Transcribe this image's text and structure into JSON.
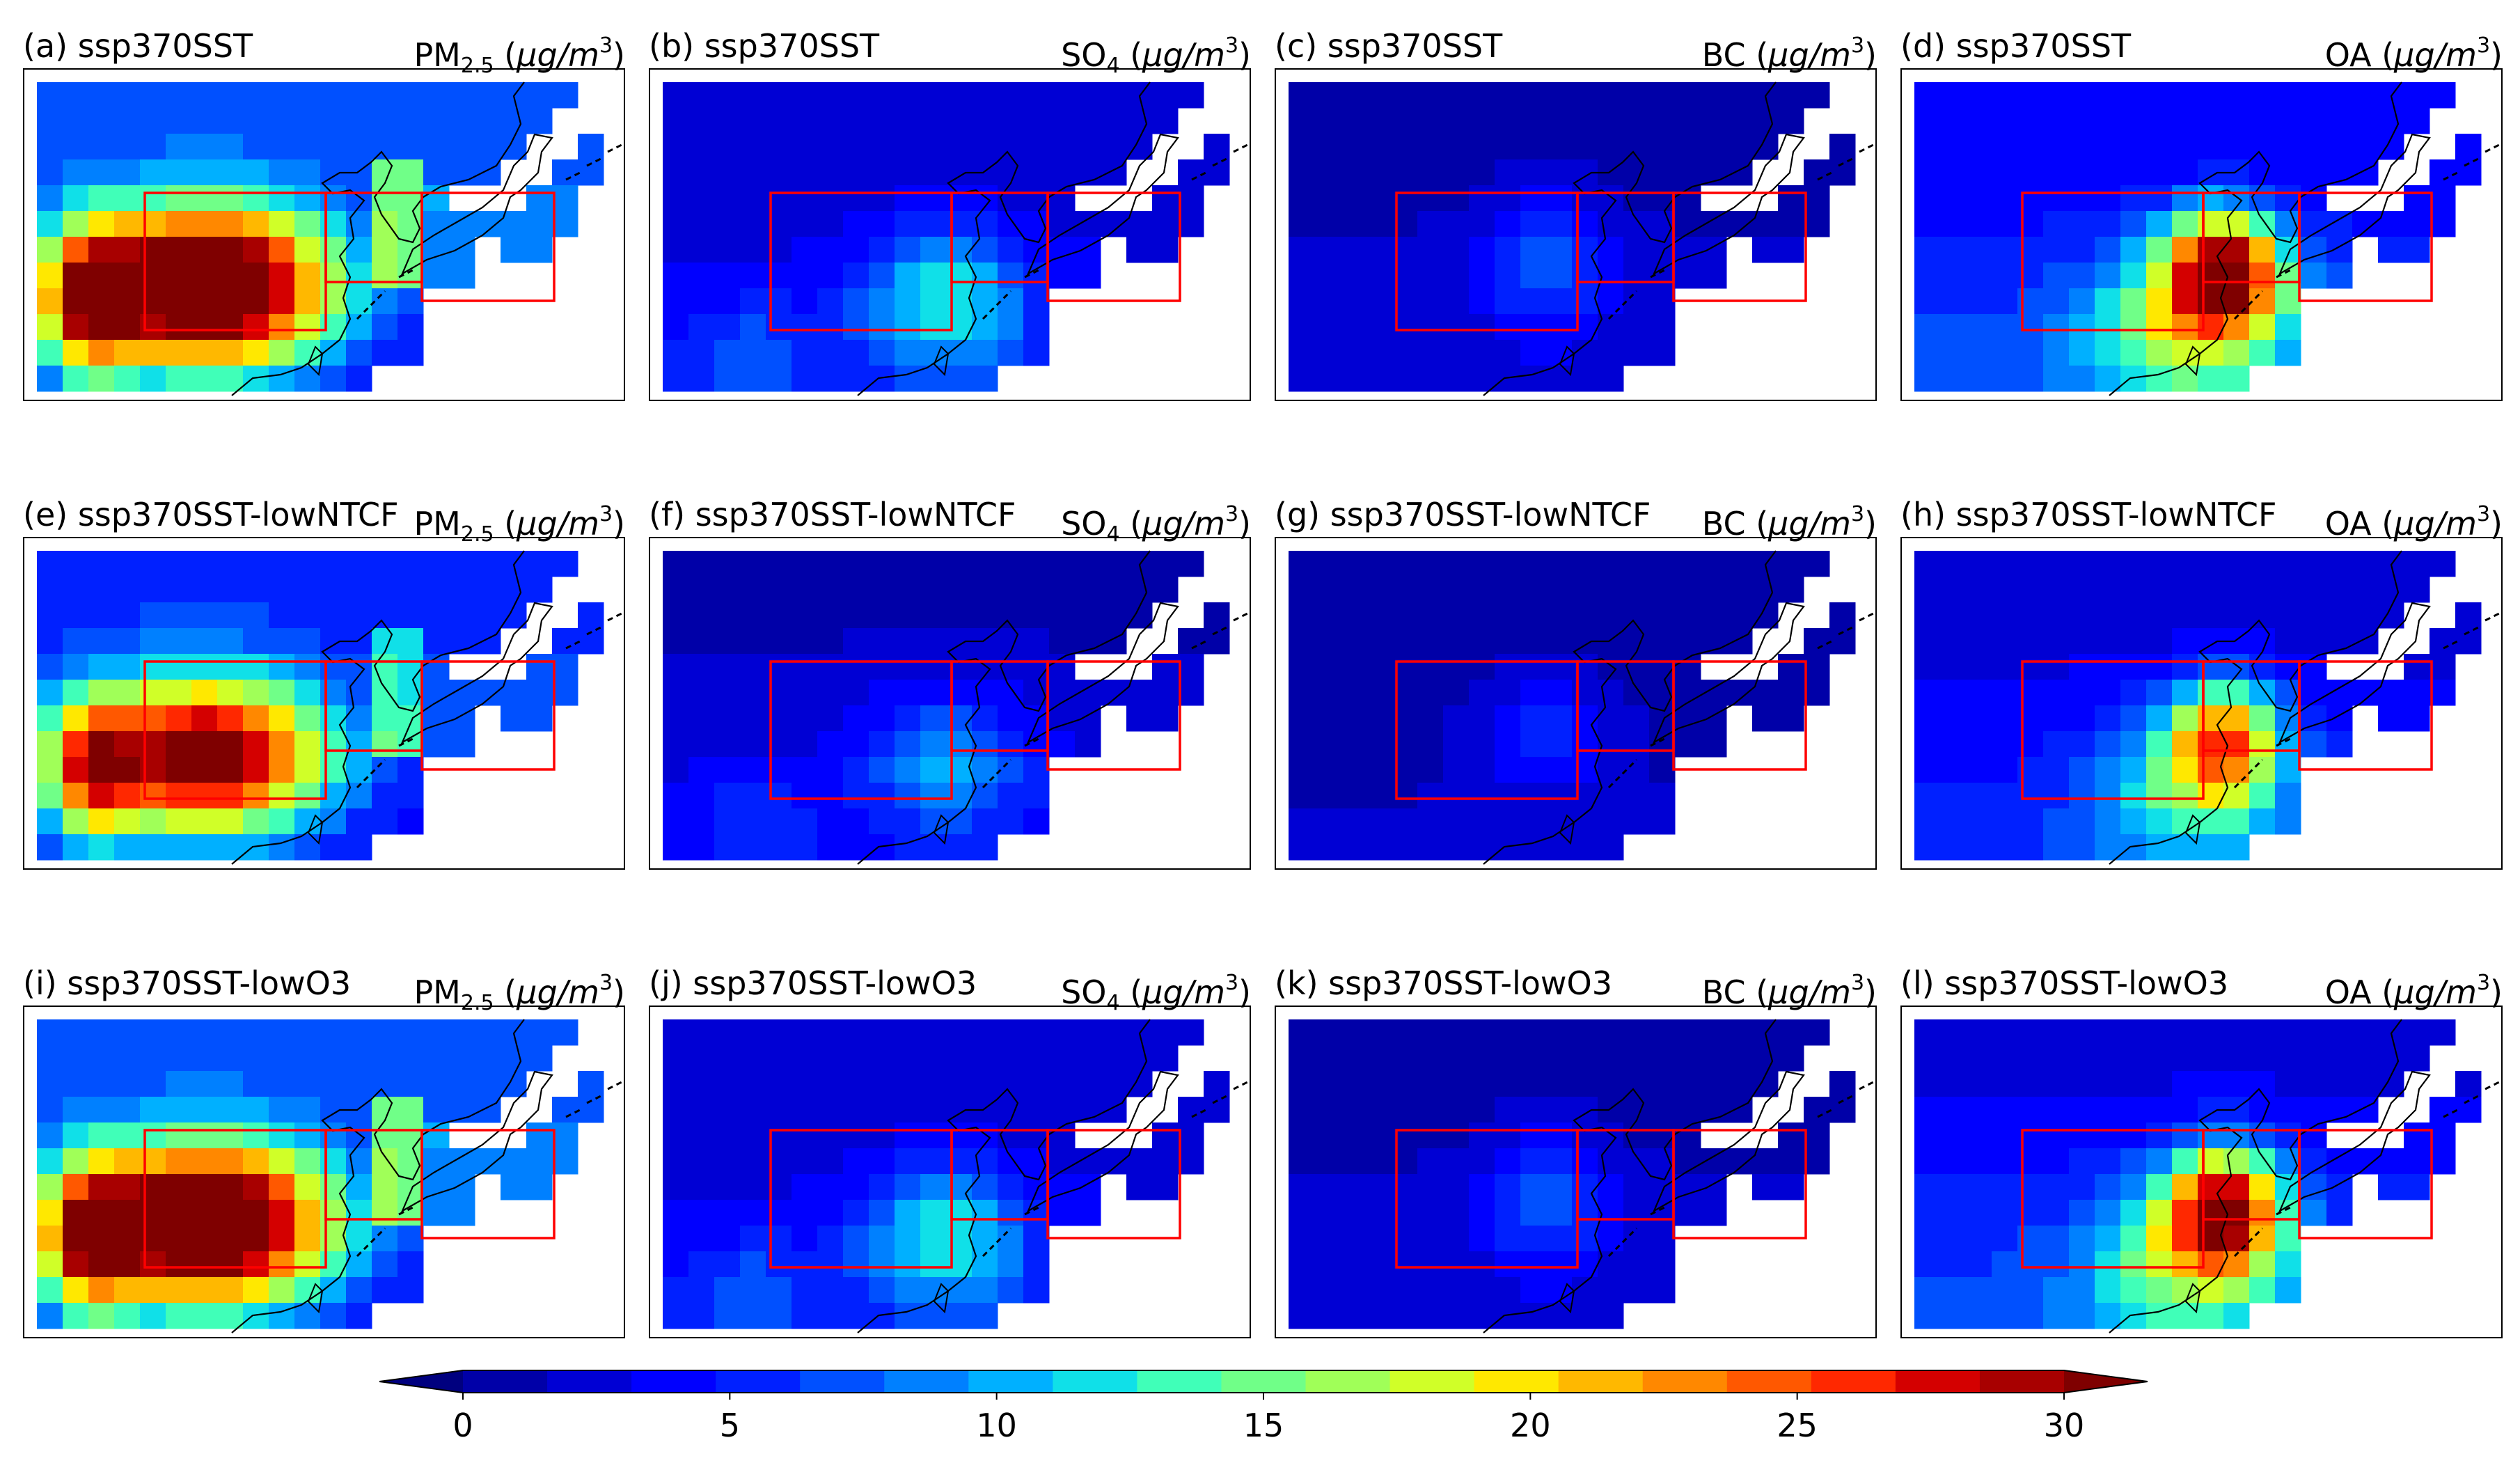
{
  "panels": [
    {
      "label": "(a) ssp370SST",
      "var": "PM",
      "var_sub": "2.5",
      "unit_mu": "μg/m",
      "unit_exp": "3",
      "scenario": "base",
      "species": "pm"
    },
    {
      "label": "(b) ssp370SST",
      "var": "SO",
      "var_sub": "4",
      "unit_mu": "μg/m",
      "unit_exp": "3",
      "scenario": "base",
      "species": "so4"
    },
    {
      "label": "(c) ssp370SST",
      "var": "BC",
      "var_sub": "",
      "unit_mu": "μg/m",
      "unit_exp": "3",
      "scenario": "base",
      "species": "bc"
    },
    {
      "label": "(d) ssp370SST",
      "var": "OA",
      "var_sub": "",
      "unit_mu": "μg/m",
      "unit_exp": "3",
      "scenario": "base",
      "species": "oa"
    },
    {
      "label": "(e) ssp370SST-lowNTCF",
      "var": "PM",
      "var_sub": "2.5",
      "unit_mu": "μg/m",
      "unit_exp": "3",
      "scenario": "lowntcf",
      "species": "pm"
    },
    {
      "label": "(f) ssp370SST-lowNTCF",
      "var": "SO",
      "var_sub": "4",
      "unit_mu": "μg/m",
      "unit_exp": "3",
      "scenario": "lowntcf",
      "species": "so4"
    },
    {
      "label": "(g) ssp370SST-lowNTCF",
      "var": "BC",
      "var_sub": "",
      "unit_mu": "μg/m",
      "unit_exp": "3",
      "scenario": "lowntcf",
      "species": "bc"
    },
    {
      "label": "(h) ssp370SST-lowNTCF",
      "var": "OA",
      "var_sub": "",
      "unit_mu": "μg/m",
      "unit_exp": "3",
      "scenario": "lowntcf",
      "species": "oa"
    },
    {
      "label": "(i) ssp370SST-lowO3",
      "var": "PM",
      "var_sub": "2.5",
      "unit_mu": "μg/m",
      "unit_exp": "3",
      "scenario": "lowo3",
      "species": "pm"
    },
    {
      "label": "(j) ssp370SST-lowO3",
      "var": "SO",
      "var_sub": "4",
      "unit_mu": "μg/m",
      "unit_exp": "3",
      "scenario": "lowo3",
      "species": "so4"
    },
    {
      "label": "(k) ssp370SST-lowO3",
      "var": "BC",
      "var_sub": "",
      "unit_mu": "μg/m",
      "unit_exp": "3",
      "scenario": "lowo3",
      "species": "bc"
    },
    {
      "label": "(l) ssp370SST-lowO3",
      "var": "OA",
      "var_sub": "",
      "unit_mu": "μg/m",
      "unit_exp": "3",
      "scenario": "lowo3",
      "species": "oa"
    }
  ],
  "colorbar": {
    "min": 0,
    "max": 30,
    "step": 1.5,
    "ticks": [
      {
        "value": 0,
        "label": "0"
      },
      {
        "value": 5,
        "label": "5"
      },
      {
        "value": 10,
        "label": "10"
      },
      {
        "value": 15,
        "label": "15"
      },
      {
        "value": 20,
        "label": "20"
      },
      {
        "value": 25,
        "label": "25"
      },
      {
        "value": 30,
        "label": "30"
      }
    ],
    "colors": [
      "#00007f",
      "#0000a8",
      "#0000d4",
      "#0000ff",
      "#0020ff",
      "#0050ff",
      "#0080ff",
      "#00b0ff",
      "#10e0e8",
      "#40ffb8",
      "#70ff88",
      "#a0ff58",
      "#d0ff28",
      "#ffe800",
      "#ffb800",
      "#ff8800",
      "#ff5800",
      "#ff2800",
      "#d40000",
      "#a80000",
      "#7f0000"
    ],
    "extend": "both"
  },
  "region_boxes_color": "#ff0000"
}
